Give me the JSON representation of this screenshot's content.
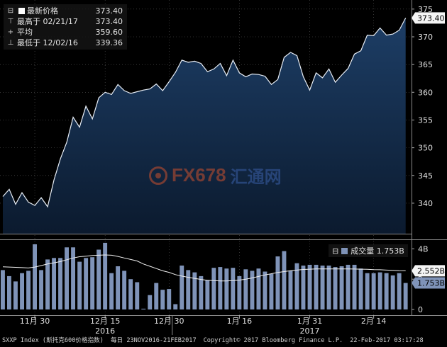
{
  "chart_data": [
    {
      "type": "area",
      "ticker": "SXXP Index",
      "ylim": [
        334.5,
        376
      ],
      "y_ticks": [
        340,
        345,
        350,
        355,
        360,
        365,
        370,
        375
      ],
      "last_value_label": "373.40",
      "legend": {
        "rows": [
          {
            "symbol": "■",
            "label": "最新价格",
            "date": "",
            "value": "373.40"
          },
          {
            "symbol": "⊤",
            "label": "最高于",
            "date": "02/21/17",
            "value": "373.40"
          },
          {
            "symbol": "+",
            "label": "平均",
            "date": "",
            "value": "359.60"
          },
          {
            "symbol": "⊥",
            "label": "最低于",
            "date": "12/02/16",
            "value": "339.36"
          }
        ]
      },
      "dates": [
        "11/23",
        "11/24",
        "11/25",
        "11/28",
        "11/29",
        "11/30",
        "12/01",
        "12/02",
        "12/05",
        "12/06",
        "12/07",
        "12/08",
        "12/09",
        "12/12",
        "12/13",
        "12/14",
        "12/15",
        "12/16",
        "12/19",
        "12/20",
        "12/21",
        "12/22",
        "12/23",
        "12/27",
        "12/28",
        "12/29",
        "12/30",
        "01/02",
        "01/03",
        "01/04",
        "01/05",
        "01/06",
        "01/09",
        "01/10",
        "01/11",
        "01/12",
        "01/13",
        "01/16",
        "01/17",
        "01/18",
        "01/19",
        "01/20",
        "01/23",
        "01/24",
        "01/25",
        "01/26",
        "01/27",
        "01/30",
        "01/31",
        "02/01",
        "02/02",
        "02/03",
        "02/06",
        "02/07",
        "02/08",
        "02/09",
        "02/10",
        "02/13",
        "02/14",
        "02/15",
        "02/16",
        "02/17",
        "02/20",
        "02/21"
      ],
      "values": [
        341.2,
        342.5,
        339.8,
        341.9,
        340.2,
        339.6,
        341.0,
        339.36,
        344.2,
        348.0,
        351.0,
        355.5,
        353.7,
        357.5,
        355.2,
        359.0,
        360.0,
        359.6,
        361.4,
        360.3,
        359.8,
        360.1,
        360.4,
        360.6,
        361.5,
        360.3,
        361.9,
        363.6,
        365.8,
        365.4,
        365.6,
        365.2,
        363.7,
        364.2,
        365.2,
        363.0,
        365.8,
        363.5,
        362.8,
        363.3,
        363.2,
        362.9,
        361.4,
        362.3,
        366.3,
        367.2,
        366.6,
        362.8,
        360.4,
        363.5,
        362.6,
        364.2,
        361.8,
        363.1,
        364.3,
        366.9,
        367.5,
        370.3,
        370.2,
        371.6,
        370.3,
        370.5,
        371.2,
        373.4
      ]
    },
    {
      "type": "bar",
      "ylim": [
        0,
        4.3
      ],
      "y_ticks": [
        {
          "value": 0,
          "label": "0"
        },
        {
          "value": 2,
          "label": "2"
        },
        {
          "value": 4,
          "label": "4B"
        }
      ],
      "legend_label": "成交量",
      "legend_value": "1.753B",
      "moving_average_label": "2.552B",
      "last_value_label": "1.753B",
      "volumes": [
        2.6,
        2.2,
        1.85,
        2.4,
        2.55,
        4.3,
        2.6,
        3.3,
        3.4,
        3.4,
        4.1,
        4.1,
        3.15,
        3.4,
        3.45,
        3.95,
        4.4,
        2.4,
        2.85,
        2.55,
        2.0,
        1.8,
        0.05,
        0.95,
        1.75,
        1.3,
        1.35,
        0.35,
        2.9,
        2.6,
        2.45,
        2.2,
        1.95,
        2.75,
        2.8,
        2.7,
        2.75,
        2.2,
        2.65,
        2.55,
        2.7,
        2.5,
        2.35,
        3.5,
        3.85,
        2.55,
        3.05,
        2.9,
        2.95,
        2.95,
        2.9,
        2.9,
        2.8,
        2.85,
        2.95,
        2.95,
        2.7,
        2.4,
        2.4,
        2.45,
        2.4,
        2.25,
        2.4,
        1.75
      ],
      "moving_average": [
        2.82,
        2.8,
        2.78,
        2.76,
        2.74,
        2.8,
        2.9,
        3.0,
        3.08,
        3.16,
        3.28,
        3.4,
        3.48,
        3.52,
        3.56,
        3.58,
        3.6,
        3.58,
        3.5,
        3.4,
        3.3,
        3.2,
        3.0,
        2.85,
        2.7,
        2.55,
        2.45,
        2.3,
        2.2,
        2.12,
        2.05,
        1.98,
        1.92,
        1.9,
        1.88,
        1.88,
        1.9,
        1.94,
        2.0,
        2.08,
        2.18,
        2.28,
        2.36,
        2.44,
        2.5,
        2.56,
        2.6,
        2.64,
        2.66,
        2.68,
        2.68,
        2.68,
        2.68,
        2.68,
        2.68,
        2.67,
        2.66,
        2.65,
        2.63,
        2.62,
        2.6,
        2.58,
        2.56,
        2.552
      ]
    }
  ],
  "x_axis": {
    "ticks": [
      {
        "label": "11月 30",
        "date": "11/30"
      },
      {
        "label": "12月 15",
        "date": "12/15"
      },
      {
        "label": "12月 30",
        "date": "12/30"
      },
      {
        "label": "1月 16",
        "date": "01/16"
      },
      {
        "label": "1月 31",
        "date": "01/31"
      },
      {
        "label": "2月 14",
        "date": "02/14"
      }
    ],
    "years": [
      {
        "label": "2016",
        "date": "12/15"
      },
      {
        "label": "2017",
        "date": "01/31"
      }
    ]
  },
  "watermark": {
    "text": "FX678",
    "text_cn": "汇通网"
  },
  "footer": {
    "index": "SXXP Index (斯托克600价格指数)",
    "period": "每日 23NOV2016-21FEB2017",
    "copyright": "Copyright© 2017 Bloomberg Finance L.P.",
    "timestamp": "22-Feb-2017 03:17:28"
  },
  "colors": {
    "area_top": "#1d3e66",
    "area_bottom": "#0b1a2e",
    "line": "#e8eef6",
    "volume_bar": "#7f93b8",
    "grid": "#5a5a5a",
    "background": "#000000"
  }
}
